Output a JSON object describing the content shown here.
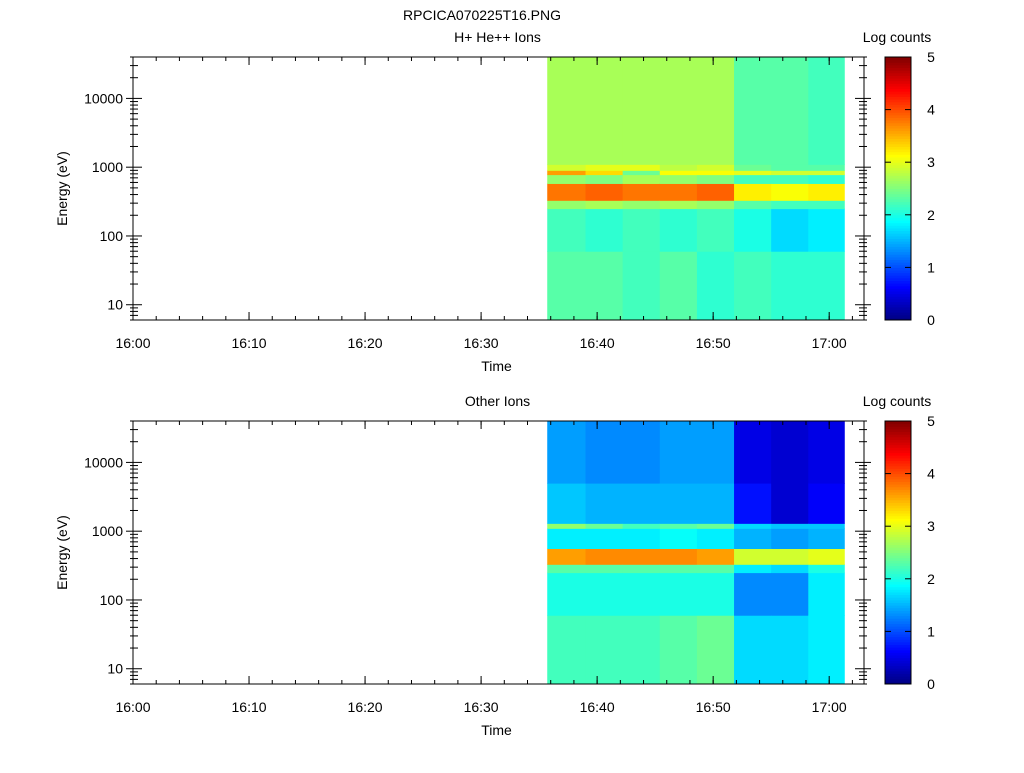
{
  "figure_title": "RPCICA070225T16.PNG",
  "chart_data": [
    {
      "type": "heatmap",
      "title": "H+ He++ Ions",
      "xlabel": "Time",
      "ylabel": "Energy (eV)",
      "x_ticks": [
        "16:00",
        "16:10",
        "16:20",
        "16:30",
        "16:40",
        "16:50",
        "17:00"
      ],
      "x_range": [
        "16:00",
        "17:03"
      ],
      "y_scale": "log",
      "y_ticks": [
        "10",
        "100",
        "1000",
        "10000"
      ],
      "y_range": [
        6,
        40000
      ],
      "colorbar": {
        "label": "Log counts",
        "range": [
          0,
          5
        ],
        "ticks": [
          "0",
          "1",
          "2",
          "3",
          "4",
          "5"
        ],
        "colormap": "jet"
      },
      "data_coverage": [
        "16:35.7",
        "17:01.3"
      ],
      "columns": [
        {
          "time": "16:35.7",
          "bands": [
            {
              "lo": 6,
              "hi": 60,
              "v": 2.3
            },
            {
              "lo": 60,
              "hi": 250,
              "v": 2.2
            },
            {
              "lo": 250,
              "hi": 330,
              "v": 2.6
            },
            {
              "lo": 330,
              "hi": 580,
              "v": 3.8
            },
            {
              "lo": 580,
              "hi": 780,
              "v": 2.6
            },
            {
              "lo": 780,
              "hi": 900,
              "v": 3.6
            },
            {
              "lo": 900,
              "hi": 1100,
              "v": 2.9
            },
            {
              "lo": 1100,
              "hi": 40000,
              "v": 2.7
            }
          ]
        },
        {
          "time": "16:39.0",
          "bands": [
            {
              "lo": 6,
              "hi": 60,
              "v": 2.3
            },
            {
              "lo": 60,
              "hi": 250,
              "v": 2.1
            },
            {
              "lo": 250,
              "hi": 330,
              "v": 2.7
            },
            {
              "lo": 330,
              "hi": 580,
              "v": 3.9
            },
            {
              "lo": 580,
              "hi": 780,
              "v": 2.5
            },
            {
              "lo": 780,
              "hi": 900,
              "v": 3.3
            },
            {
              "lo": 900,
              "hi": 1100,
              "v": 3.0
            },
            {
              "lo": 1100,
              "hi": 40000,
              "v": 2.7
            }
          ]
        },
        {
          "time": "16:42.2",
          "bands": [
            {
              "lo": 6,
              "hi": 60,
              "v": 2.2
            },
            {
              "lo": 60,
              "hi": 250,
              "v": 2.2
            },
            {
              "lo": 250,
              "hi": 330,
              "v": 2.6
            },
            {
              "lo": 330,
              "hi": 580,
              "v": 3.8
            },
            {
              "lo": 580,
              "hi": 780,
              "v": 2.7
            },
            {
              "lo": 780,
              "hi": 900,
              "v": 2.4
            },
            {
              "lo": 900,
              "hi": 1100,
              "v": 3.0
            },
            {
              "lo": 1100,
              "hi": 40000,
              "v": 2.7
            }
          ]
        },
        {
          "time": "16:45.4",
          "bands": [
            {
              "lo": 6,
              "hi": 60,
              "v": 2.3
            },
            {
              "lo": 60,
              "hi": 250,
              "v": 2.1
            },
            {
              "lo": 250,
              "hi": 330,
              "v": 2.7
            },
            {
              "lo": 330,
              "hi": 580,
              "v": 3.8
            },
            {
              "lo": 580,
              "hi": 780,
              "v": 2.6
            },
            {
              "lo": 780,
              "hi": 900,
              "v": 3.1
            },
            {
              "lo": 900,
              "hi": 1100,
              "v": 2.8
            },
            {
              "lo": 1100,
              "hi": 40000,
              "v": 2.7
            }
          ]
        },
        {
          "time": "16:48.6",
          "bands": [
            {
              "lo": 6,
              "hi": 60,
              "v": 2.1
            },
            {
              "lo": 60,
              "hi": 250,
              "v": 2.2
            },
            {
              "lo": 250,
              "hi": 330,
              "v": 2.6
            },
            {
              "lo": 330,
              "hi": 580,
              "v": 3.9
            },
            {
              "lo": 580,
              "hi": 780,
              "v": 2.5
            },
            {
              "lo": 780,
              "hi": 900,
              "v": 3.1
            },
            {
              "lo": 900,
              "hi": 1100,
              "v": 2.9
            },
            {
              "lo": 1100,
              "hi": 40000,
              "v": 2.7
            }
          ]
        },
        {
          "time": "16:51.8",
          "bands": [
            {
              "lo": 6,
              "hi": 60,
              "v": 2.2
            },
            {
              "lo": 60,
              "hi": 250,
              "v": 2.0
            },
            {
              "lo": 250,
              "hi": 330,
              "v": 2.3
            },
            {
              "lo": 330,
              "hi": 580,
              "v": 3.2
            },
            {
              "lo": 580,
              "hi": 780,
              "v": 2.2
            },
            {
              "lo": 780,
              "hi": 900,
              "v": 3.0
            },
            {
              "lo": 900,
              "hi": 1100,
              "v": 2.4
            },
            {
              "lo": 1100,
              "hi": 40000,
              "v": 2.3
            }
          ]
        },
        {
          "time": "16:55.0",
          "bands": [
            {
              "lo": 6,
              "hi": 60,
              "v": 2.1
            },
            {
              "lo": 60,
              "hi": 250,
              "v": 1.7
            },
            {
              "lo": 250,
              "hi": 330,
              "v": 2.2
            },
            {
              "lo": 330,
              "hi": 580,
              "v": 3.1
            },
            {
              "lo": 580,
              "hi": 780,
              "v": 2.2
            },
            {
              "lo": 780,
              "hi": 900,
              "v": 2.9
            },
            {
              "lo": 900,
              "hi": 1100,
              "v": 2.3
            },
            {
              "lo": 1100,
              "hi": 40000,
              "v": 2.3
            }
          ]
        },
        {
          "time": "16:58.2",
          "bands": [
            {
              "lo": 6,
              "hi": 60,
              "v": 2.1
            },
            {
              "lo": 60,
              "hi": 250,
              "v": 1.8
            },
            {
              "lo": 250,
              "hi": 330,
              "v": 2.2
            },
            {
              "lo": 330,
              "hi": 580,
              "v": 3.2
            },
            {
              "lo": 580,
              "hi": 780,
              "v": 2.1
            },
            {
              "lo": 780,
              "hi": 900,
              "v": 2.9
            },
            {
              "lo": 900,
              "hi": 1100,
              "v": 2.3
            },
            {
              "lo": 1100,
              "hi": 40000,
              "v": 2.2
            }
          ]
        }
      ]
    },
    {
      "type": "heatmap",
      "title": "Other Ions",
      "xlabel": "Time",
      "ylabel": "Energy (eV)",
      "x_ticks": [
        "16:00",
        "16:10",
        "16:20",
        "16:30",
        "16:40",
        "16:50",
        "17:00"
      ],
      "x_range": [
        "16:00",
        "17:03"
      ],
      "y_scale": "log",
      "y_ticks": [
        "10",
        "100",
        "1000",
        "10000"
      ],
      "y_range": [
        6,
        40000
      ],
      "colorbar": {
        "label": "Log counts",
        "range": [
          0,
          5
        ],
        "ticks": [
          "0",
          "1",
          "2",
          "3",
          "4",
          "5"
        ],
        "colormap": "jet"
      },
      "data_coverage": [
        "16:35.7",
        "17:01.3"
      ],
      "columns": [
        {
          "time": "16:35.7",
          "bands": [
            {
              "lo": 6,
              "hi": 60,
              "v": 2.2
            },
            {
              "lo": 60,
              "hi": 250,
              "v": 2.0
            },
            {
              "lo": 250,
              "hi": 330,
              "v": 2.3
            },
            {
              "lo": 330,
              "hi": 560,
              "v": 3.6
            },
            {
              "lo": 560,
              "hi": 1100,
              "v": 1.8
            },
            {
              "lo": 1100,
              "hi": 1300,
              "v": 2.6
            },
            {
              "lo": 1300,
              "hi": 5000,
              "v": 1.6
            },
            {
              "lo": 5000,
              "hi": 40000,
              "v": 1.4
            }
          ]
        },
        {
          "time": "16:39.0",
          "bands": [
            {
              "lo": 6,
              "hi": 60,
              "v": 2.2
            },
            {
              "lo": 60,
              "hi": 250,
              "v": 2.0
            },
            {
              "lo": 250,
              "hi": 330,
              "v": 2.3
            },
            {
              "lo": 330,
              "hi": 560,
              "v": 3.7
            },
            {
              "lo": 560,
              "hi": 1100,
              "v": 1.8
            },
            {
              "lo": 1100,
              "hi": 1300,
              "v": 2.4
            },
            {
              "lo": 1300,
              "hi": 5000,
              "v": 1.5
            },
            {
              "lo": 5000,
              "hi": 40000,
              "v": 1.3
            }
          ]
        },
        {
          "time": "16:42.2",
          "bands": [
            {
              "lo": 6,
              "hi": 60,
              "v": 2.2
            },
            {
              "lo": 60,
              "hi": 250,
              "v": 2.0
            },
            {
              "lo": 250,
              "hi": 330,
              "v": 2.3
            },
            {
              "lo": 330,
              "hi": 560,
              "v": 3.7
            },
            {
              "lo": 560,
              "hi": 1100,
              "v": 1.8
            },
            {
              "lo": 1100,
              "hi": 1300,
              "v": 2.2
            },
            {
              "lo": 1300,
              "hi": 5000,
              "v": 1.5
            },
            {
              "lo": 5000,
              "hi": 40000,
              "v": 1.3
            }
          ]
        },
        {
          "time": "16:45.4",
          "bands": [
            {
              "lo": 6,
              "hi": 60,
              "v": 2.3
            },
            {
              "lo": 60,
              "hi": 250,
              "v": 2.0
            },
            {
              "lo": 250,
              "hi": 330,
              "v": 2.3
            },
            {
              "lo": 330,
              "hi": 560,
              "v": 3.7
            },
            {
              "lo": 560,
              "hi": 1100,
              "v": 1.9
            },
            {
              "lo": 1100,
              "hi": 1300,
              "v": 2.3
            },
            {
              "lo": 1300,
              "hi": 5000,
              "v": 1.5
            },
            {
              "lo": 5000,
              "hi": 40000,
              "v": 1.4
            }
          ]
        },
        {
          "time": "16:48.6",
          "bands": [
            {
              "lo": 6,
              "hi": 60,
              "v": 2.4
            },
            {
              "lo": 60,
              "hi": 250,
              "v": 2.0
            },
            {
              "lo": 250,
              "hi": 330,
              "v": 2.3
            },
            {
              "lo": 330,
              "hi": 560,
              "v": 3.6
            },
            {
              "lo": 560,
              "hi": 1100,
              "v": 1.8
            },
            {
              "lo": 1100,
              "hi": 1300,
              "v": 2.4
            },
            {
              "lo": 1300,
              "hi": 5000,
              "v": 1.5
            },
            {
              "lo": 5000,
              "hi": 40000,
              "v": 1.4
            }
          ]
        },
        {
          "time": "16:51.8",
          "bands": [
            {
              "lo": 6,
              "hi": 60,
              "v": 1.7
            },
            {
              "lo": 60,
              "hi": 250,
              "v": 1.3
            },
            {
              "lo": 250,
              "hi": 330,
              "v": 1.8
            },
            {
              "lo": 330,
              "hi": 560,
              "v": 2.9
            },
            {
              "lo": 560,
              "hi": 1100,
              "v": 1.5
            },
            {
              "lo": 1100,
              "hi": 1300,
              "v": 1.7
            },
            {
              "lo": 1300,
              "hi": 5000,
              "v": 0.7
            },
            {
              "lo": 5000,
              "hi": 40000,
              "v": 0.5
            }
          ]
        },
        {
          "time": "16:55.0",
          "bands": [
            {
              "lo": 6,
              "hi": 60,
              "v": 1.7
            },
            {
              "lo": 60,
              "hi": 250,
              "v": 1.3
            },
            {
              "lo": 250,
              "hi": 330,
              "v": 1.7
            },
            {
              "lo": 330,
              "hi": 560,
              "v": 2.9
            },
            {
              "lo": 560,
              "hi": 1100,
              "v": 1.4
            },
            {
              "lo": 1100,
              "hi": 1300,
              "v": 1.6
            },
            {
              "lo": 1300,
              "hi": 5000,
              "v": 0.4
            },
            {
              "lo": 5000,
              "hi": 40000,
              "v": 0.4
            }
          ]
        },
        {
          "time": "16:58.2",
          "bands": [
            {
              "lo": 6,
              "hi": 60,
              "v": 1.8
            },
            {
              "lo": 60,
              "hi": 250,
              "v": 1.8
            },
            {
              "lo": 250,
              "hi": 330,
              "v": 2.0
            },
            {
              "lo": 330,
              "hi": 560,
              "v": 3.0
            },
            {
              "lo": 560,
              "hi": 1100,
              "v": 1.5
            },
            {
              "lo": 1100,
              "hi": 1300,
              "v": 1.6
            },
            {
              "lo": 1300,
              "hi": 5000,
              "v": 0.6
            },
            {
              "lo": 5000,
              "hi": 40000,
              "v": 0.5
            }
          ]
        }
      ]
    }
  ]
}
